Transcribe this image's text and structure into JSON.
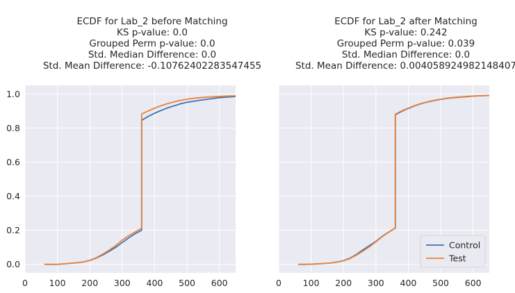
{
  "chart_data": [
    {
      "type": "line",
      "title_lines": [
        "ECDF for Lab_2 before Matching",
        "KS p-value: 0.0",
        "Grouped Perm p-value: 0.0",
        "Std. Median Difference: 0.0",
        "Std. Mean Difference: -0.10762402283547455"
      ],
      "xlabel": "",
      "ylabel": "",
      "xlim": [
        0,
        650
      ],
      "ylim": [
        -0.05,
        1.05
      ],
      "xticks": [
        "0",
        "100",
        "200",
        "300",
        "400",
        "500",
        "600"
      ],
      "yticks": [
        "0.0",
        "0.2",
        "0.4",
        "0.6",
        "0.8",
        "1.0"
      ],
      "grid": true,
      "series": [
        {
          "name": "Control",
          "color": "#3a72b0",
          "x": [
            60,
            80,
            100,
            120,
            140,
            160,
            180,
            200,
            220,
            240,
            260,
            280,
            300,
            320,
            340,
            360,
            360,
            380,
            400,
            420,
            440,
            460,
            480,
            500,
            520,
            540,
            560,
            580,
            600,
            620,
            650
          ],
          "y": [
            0.0,
            0.0,
            0.0,
            0.003,
            0.006,
            0.009,
            0.014,
            0.023,
            0.037,
            0.055,
            0.077,
            0.1,
            0.128,
            0.155,
            0.18,
            0.2,
            0.845,
            0.868,
            0.887,
            0.903,
            0.918,
            0.93,
            0.942,
            0.951,
            0.957,
            0.963,
            0.968,
            0.973,
            0.978,
            0.981,
            0.985
          ]
        },
        {
          "name": "Test",
          "color": "#e8823a",
          "x": [
            60,
            80,
            100,
            120,
            140,
            160,
            180,
            200,
            220,
            240,
            260,
            280,
            300,
            320,
            340,
            360,
            360,
            380,
            400,
            420,
            440,
            460,
            480,
            500,
            520,
            540,
            560,
            580,
            600,
            620,
            650
          ],
          "y": [
            0.0,
            0.0,
            0.0,
            0.003,
            0.006,
            0.009,
            0.014,
            0.024,
            0.039,
            0.06,
            0.084,
            0.11,
            0.142,
            0.168,
            0.19,
            0.212,
            0.882,
            0.9,
            0.916,
            0.931,
            0.943,
            0.953,
            0.962,
            0.969,
            0.974,
            0.978,
            0.981,
            0.983,
            0.985,
            0.987,
            0.989
          ]
        }
      ]
    },
    {
      "type": "line",
      "title_lines": [
        "ECDF for Lab_2 after Matching",
        "KS p-value: 0.242",
        "Grouped Perm p-value: 0.039",
        "Std. Median Difference: 0.0",
        "Std. Mean Difference: 0.004058924982148407"
      ],
      "xlabel": "",
      "ylabel": "",
      "xlim": [
        0,
        650
      ],
      "ylim": [
        -0.05,
        1.05
      ],
      "xticks": [
        "0",
        "100",
        "200",
        "300",
        "400",
        "500",
        "600"
      ],
      "yticks": [],
      "grid": true,
      "legend": {
        "position": "lower right",
        "entries": [
          "Control",
          "Test"
        ]
      },
      "series": [
        {
          "name": "Control",
          "color": "#3a72b0",
          "x": [
            60,
            80,
            100,
            120,
            140,
            160,
            180,
            200,
            220,
            240,
            260,
            280,
            300,
            320,
            340,
            360,
            360,
            380,
            400,
            420,
            440,
            460,
            480,
            500,
            520,
            540,
            560,
            580,
            600,
            620,
            650
          ],
          "y": [
            0.0,
            0.0,
            0.001,
            0.003,
            0.005,
            0.008,
            0.013,
            0.022,
            0.036,
            0.058,
            0.085,
            0.11,
            0.135,
            0.165,
            0.19,
            0.213,
            0.878,
            0.898,
            0.915,
            0.93,
            0.943,
            0.953,
            0.961,
            0.968,
            0.974,
            0.978,
            0.981,
            0.984,
            0.987,
            0.989,
            0.991
          ]
        },
        {
          "name": "Test",
          "color": "#e8823a",
          "x": [
            60,
            80,
            100,
            120,
            140,
            160,
            180,
            200,
            220,
            240,
            260,
            280,
            300,
            320,
            340,
            360,
            360,
            380,
            400,
            420,
            440,
            460,
            480,
            500,
            520,
            540,
            560,
            580,
            600,
            620,
            650
          ],
          "y": [
            0.0,
            0.0,
            0.001,
            0.003,
            0.005,
            0.008,
            0.013,
            0.021,
            0.034,
            0.054,
            0.078,
            0.103,
            0.132,
            0.163,
            0.189,
            0.212,
            0.881,
            0.901,
            0.917,
            0.932,
            0.944,
            0.954,
            0.962,
            0.969,
            0.975,
            0.979,
            0.982,
            0.985,
            0.987,
            0.989,
            0.991
          ]
        }
      ]
    }
  ]
}
